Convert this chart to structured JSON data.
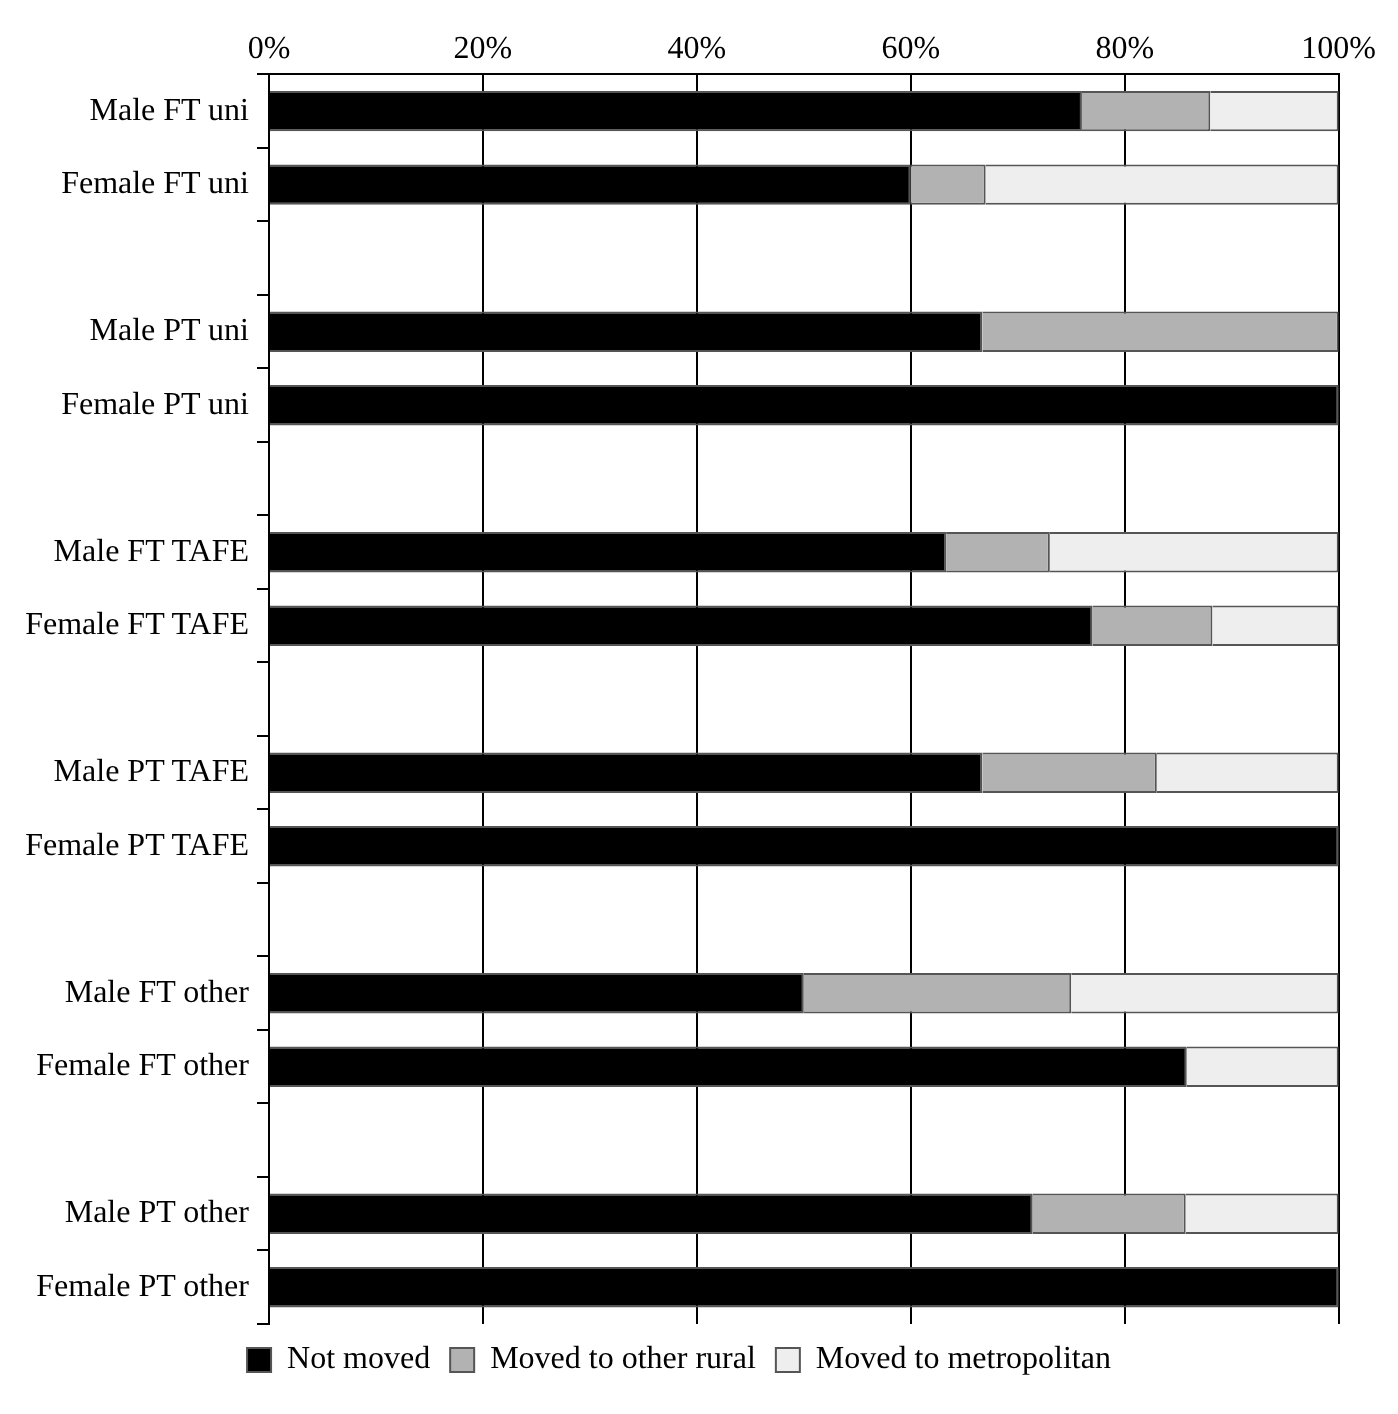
{
  "chart_data": {
    "type": "bar",
    "orientation": "horizontal",
    "stacked": true,
    "categories": [
      "Male FT uni",
      "Female FT uni",
      null,
      "Male PT uni",
      "Female PT uni",
      null,
      "Male FT TAFE",
      "Female FT TAFE",
      null,
      "Male PT TAFE",
      "Female PT TAFE",
      null,
      "Male FT other",
      "Female FT other",
      null,
      "Male PT other",
      "Female PT other"
    ],
    "series": [
      {
        "name": "Not moved",
        "color": "#000000",
        "values": [
          76,
          60,
          null,
          66.7,
          100,
          null,
          63.3,
          77,
          null,
          66.7,
          100,
          null,
          50,
          85.8,
          null,
          71.4,
          100
        ]
      },
      {
        "name": "Moved to other rural",
        "color": "#b2b2b2",
        "values": [
          12,
          7,
          null,
          33.3,
          0,
          null,
          9.7,
          11.2,
          null,
          16.3,
          0,
          null,
          25,
          0,
          null,
          14.3,
          0
        ]
      },
      {
        "name": "Moved to metropolitan",
        "color": "#eeeeee",
        "values": [
          12,
          33,
          null,
          0,
          0,
          null,
          27,
          11.8,
          null,
          17,
          0,
          null,
          25,
          14.2,
          null,
          14.3,
          0
        ]
      }
    ],
    "xlim": [
      0,
      100
    ],
    "xticks": [
      {
        "value": 0,
        "label": "0%"
      },
      {
        "value": 20,
        "label": "20%"
      },
      {
        "value": 40,
        "label": "40%"
      },
      {
        "value": 60,
        "label": "60%"
      },
      {
        "value": 80,
        "label": "80%"
      },
      {
        "value": 100,
        "label": "100%"
      }
    ],
    "grid": "x",
    "legend": "bottom"
  }
}
